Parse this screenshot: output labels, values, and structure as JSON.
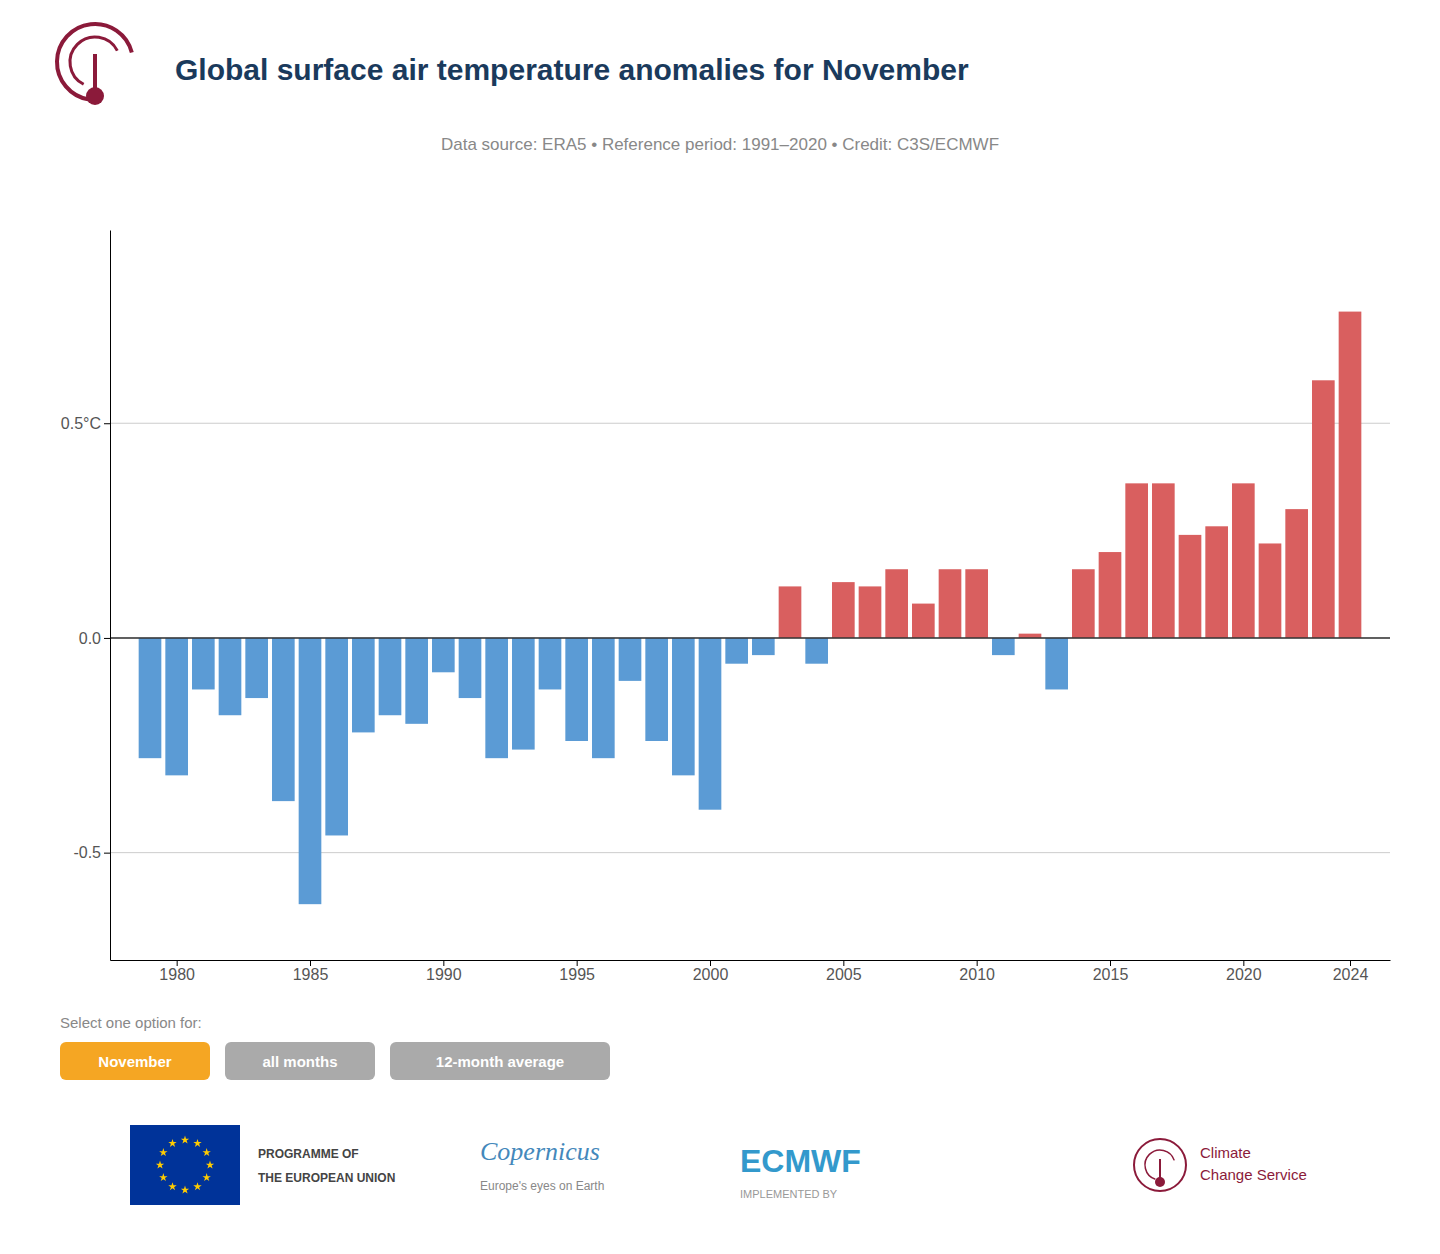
{
  "chart_data": {
    "type": "bar",
    "title": "Global surface air temperature anomalies for November",
    "subtitle": "Data source: ERA5 • Reference period: 1991–2020 • Credit: C3S/ECMWF",
    "x": [
      1979,
      1980,
      1981,
      1982,
      1983,
      1984,
      1985,
      1986,
      1987,
      1988,
      1989,
      1990,
      1991,
      1992,
      1993,
      1994,
      1995,
      1996,
      1997,
      1998,
      1999,
      2000,
      2001,
      2002,
      2003,
      2004,
      2005,
      2006,
      2007,
      2008,
      2009,
      2010,
      2011,
      2012,
      2013,
      2014,
      2015,
      2016,
      2017,
      2018,
      2019,
      2020,
      2021,
      2022,
      2023,
      2024
    ],
    "values": [
      -0.28,
      -0.32,
      -0.12,
      -0.18,
      -0.14,
      -0.38,
      -0.62,
      -0.46,
      -0.22,
      -0.18,
      -0.2,
      -0.08,
      -0.14,
      -0.28,
      -0.26,
      -0.12,
      -0.24,
      -0.28,
      -0.1,
      -0.24,
      -0.32,
      -0.4,
      -0.06,
      -0.04,
      0.12,
      -0.06,
      0.13,
      0.12,
      0.16,
      0.08,
      0.16,
      0.16,
      -0.04,
      0.01,
      -0.12,
      0.16,
      0.2,
      0.36,
      0.36,
      0.24,
      0.26,
      0.36,
      0.22,
      0.3,
      0.6,
      0.76
    ],
    "colors": [
      "#5b9bd5",
      "#5b9bd5",
      "#5b9bd5",
      "#5b9bd5",
      "#5b9bd5",
      "#5b9bd5",
      "#5b9bd5",
      "#5b9bd5",
      "#5b9bd5",
      "#5b9bd5",
      "#5b9bd5",
      "#5b9bd5",
      "#5b9bd5",
      "#5b9bd5",
      "#5b9bd5",
      "#5b9bd5",
      "#5b9bd5",
      "#5b9bd5",
      "#5b9bd5",
      "#5b9bd5",
      "#5b9bd5",
      "#5b9bd5",
      "#5b9bd5",
      "#5b9bd5",
      "#d95f5f",
      "#5b9bd5",
      "#d95f5f",
      "#d95f5f",
      "#d95f5f",
      "#d95f5f",
      "#d95f5f",
      "#d95f5f",
      "#5b9bd5",
      "#d95f5f",
      "#5b9bd5",
      "#d95f5f",
      "#d95f5f",
      "#d95f5f",
      "#d95f5f",
      "#d95f5f",
      "#d95f5f",
      "#d95f5f",
      "#d95f5f",
      "#d95f5f",
      "#d95f5f",
      "#d95f5f"
    ],
    "xlim": [
      1977.5,
      2025.5
    ],
    "xticks": [
      1980,
      1985,
      1990,
      1995,
      2000,
      2005,
      2010,
      2015,
      2020,
      2024
    ],
    "ylim": [
      -0.75,
      0.95
    ],
    "yticks": [
      -0.5,
      {
        "value": 0.0,
        "label": "0.0"
      },
      {
        "value": 0.5,
        "label": "0.5°C"
      }
    ],
    "grid": true,
    "annotations": [
      "Select one option for:",
      "November",
      "all months",
      "12-month average",
      "PROGRAMME OF",
      "THE EUROPEAN UNION",
      "Copernicus",
      "Europe's eyes on Earth",
      "IMPLEMENTED BY",
      "ECMWF",
      "Climate",
      "Change Service"
    ]
  }
}
